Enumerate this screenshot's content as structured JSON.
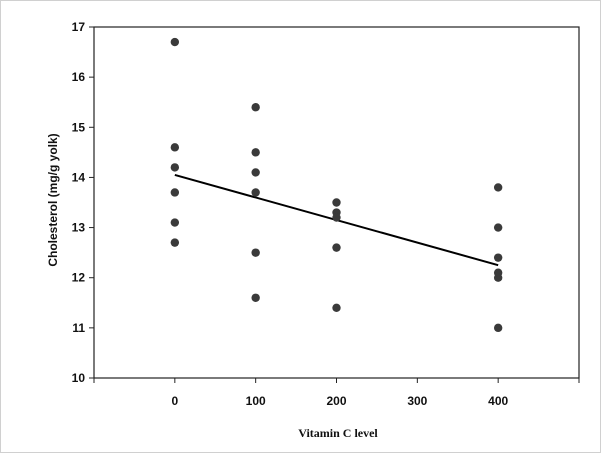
{
  "chart_data": {
    "type": "scatter",
    "title": "",
    "xlabel": "Vitamin C level",
    "ylabel": "Cholesterol (mg/g yolk)",
    "xlim": [
      -100,
      500
    ],
    "ylim": [
      10,
      17
    ],
    "x_ticks": [
      0,
      100,
      200,
      300,
      400
    ],
    "y_ticks": [
      10,
      11,
      12,
      13,
      14,
      15,
      16,
      17
    ],
    "grid": false,
    "legend": "none",
    "marker_color": "#3a3a3a",
    "line_color": "#000000",
    "series": [
      {
        "points": [
          {
            "x": 0,
            "y": 16.7
          },
          {
            "x": 0,
            "y": 14.6
          },
          {
            "x": 0,
            "y": 14.2
          },
          {
            "x": 0,
            "y": 13.7
          },
          {
            "x": 0,
            "y": 13.1
          },
          {
            "x": 0,
            "y": 12.7
          },
          {
            "x": 100,
            "y": 15.4
          },
          {
            "x": 100,
            "y": 14.5
          },
          {
            "x": 100,
            "y": 14.1
          },
          {
            "x": 100,
            "y": 13.7
          },
          {
            "x": 100,
            "y": 12.5
          },
          {
            "x": 100,
            "y": 11.6
          },
          {
            "x": 200,
            "y": 13.5
          },
          {
            "x": 200,
            "y": 13.3
          },
          {
            "x": 200,
            "y": 13.2
          },
          {
            "x": 200,
            "y": 12.6
          },
          {
            "x": 200,
            "y": 11.4
          },
          {
            "x": 400,
            "y": 13.8
          },
          {
            "x": 400,
            "y": 13.0
          },
          {
            "x": 400,
            "y": 12.4
          },
          {
            "x": 400,
            "y": 12.1
          },
          {
            "x": 400,
            "y": 12.0
          },
          {
            "x": 400,
            "y": 11.0
          }
        ]
      }
    ],
    "trendline": {
      "type": "linear",
      "start": {
        "x": 0,
        "y": 14.05
      },
      "end": {
        "x": 400,
        "y": 12.25
      }
    }
  }
}
